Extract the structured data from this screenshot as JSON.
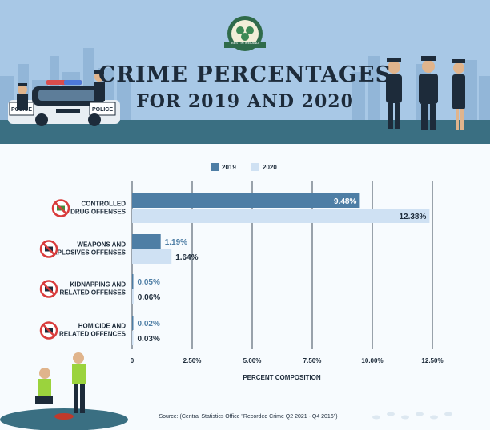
{
  "header": {
    "title_line1": "CRIME PERCENTAGES",
    "title_line2": "FOR 2019 AND 2020",
    "badge_text": "BEST IN IRELAND",
    "car_label_left": "POLICE",
    "car_label_right": "POLICE"
  },
  "colors": {
    "series_2019": "#4e7ea5",
    "series_2020": "#cfe1f3",
    "header_bg": "#a8c8e6",
    "teal": "#3a6f82"
  },
  "chart_data": {
    "type": "bar",
    "orientation": "horizontal",
    "categories": [
      [
        "CONTROLLED",
        "DRUG OFFENSES"
      ],
      [
        "WEAPONS AND",
        "EXPLOSIVES OFFENSES"
      ],
      [
        "KIDNAPPING AND",
        "RELATED OFFENSES"
      ],
      [
        "HOMICIDE AND",
        "RELATED OFFENCES"
      ]
    ],
    "category_icons": [
      "no-drugs-icon",
      "no-weapons-icon",
      "no-kidnapping-icon",
      "no-homicide-icon"
    ],
    "series": [
      {
        "name": "2019",
        "values": [
          9.48,
          1.19,
          0.05,
          0.02
        ],
        "labels": [
          "9.48%",
          "1.19%",
          "0.05%",
          "0.02%"
        ]
      },
      {
        "name": "2020",
        "values": [
          12.38,
          1.64,
          0.06,
          0.03
        ],
        "labels": [
          "12.38%",
          "1.64%",
          "0.06%",
          "0.03%"
        ]
      }
    ],
    "xlim": [
      0,
      12.5
    ],
    "xticks": [
      0,
      2.5,
      5,
      7.5,
      10,
      12.5
    ],
    "xtick_labels": [
      "0",
      "2.50%",
      "5.00%",
      "7.50%",
      "10.00%",
      "12.50%"
    ],
    "xlabel": "PERCENT COMPOSITION",
    "grid": true,
    "legend": "top-center"
  },
  "source": "Source: (Central Statistics Office \"Recorded Crime Q2 2021 - Q4 2016\")"
}
